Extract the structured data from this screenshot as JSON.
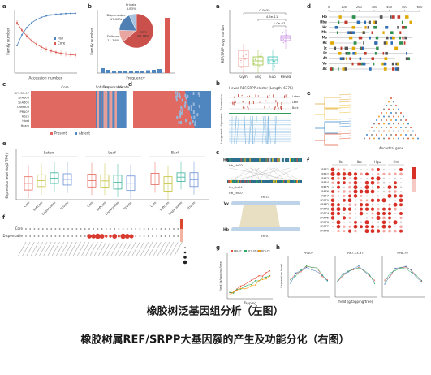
{
  "captions": {
    "left": "橡胶树泛基因组分析（左图）",
    "right": "橡胶树属REF/SRPP大基因簇的产生及功能分化（右图）"
  },
  "left": {
    "a": {
      "letter": "a",
      "ylabel": "Family number",
      "xlabel": "Accession number",
      "legend": [
        "Pan",
        "Core"
      ]
    },
    "b": {
      "letter": "b",
      "ylabel": "Family number",
      "xlabel": "Frequency",
      "pie": {
        "type": "pie",
        "categories": [
          "Core",
          "Softcore",
          "Dispensable",
          "Private"
        ],
        "values": [
          64.26,
          11.34,
          17.58,
          6.83
        ],
        "value_labels": [
          "64.26%",
          "11.34%",
          "17.58%",
          "6.83%"
        ],
        "colors": [
          "#c9504b",
          "#e9a59f",
          "#4f7fb3",
          "#a8c4e0"
        ]
      }
    },
    "c": {
      "letter": "c",
      "columns": [
        "Core",
        "Softcore",
        "Dispensable",
        "Private"
      ],
      "rows": [
        "RY7-33-97",
        "SJ-A600",
        "SJ-A602",
        "CRM600",
        "PR107",
        "Hbch",
        "Hbet",
        "Hcam"
      ],
      "legend": [
        "Present",
        "Absent"
      ]
    },
    "d": {
      "letter": "d"
    },
    "e": {
      "letter": "e",
      "groups": [
        "Latex",
        "Leaf",
        "Bark"
      ],
      "ylabel": "Expression level (log2(TPM))",
      "categories": [
        "Core",
        "Softcore",
        "Dispensable",
        "Private"
      ]
    },
    "f": {
      "letter": "f",
      "rows": [
        "Core",
        "Dispensable"
      ]
    }
  },
  "right": {
    "a": {
      "letter": "a",
      "ylabel": "REF/SRPP copy number",
      "categories": [
        "Gym",
        "Ang",
        "Eup",
        "Hevea"
      ],
      "pvalues": [
        "0.0035",
        "4.5e-11",
        "1.0e-07"
      ]
    },
    "b": {
      "letter": "b",
      "title": "Hevea REF/SRPP cluster (Length: 637K)",
      "side_labels": [
        "Expression",
        "Long-read alignment"
      ],
      "tracks": [
        "Latex",
        "Leaf",
        "Bark"
      ]
    },
    "c": {
      "letter": "c",
      "regions": [
        "Hb_chr02",
        "Vv_chr14",
        "Hb_chr07"
      ],
      "species": [
        "Hb",
        "Vv",
        "Hb"
      ],
      "chromosomes": [
        "chr14",
        "chr07"
      ]
    },
    "d": {
      "letter": "d",
      "rows": [
        "Hb",
        "Hbe",
        "Hc",
        "Me",
        "Ms",
        "Rc",
        "Jc",
        "Pt",
        "At",
        "Vv",
        "Ac"
      ],
      "xlim": [
        0,
        600
      ],
      "xticks": [
        0,
        100,
        200,
        300,
        400,
        500,
        600
      ]
    },
    "e": {
      "letter": "e",
      "label": "Ancestral gene"
    },
    "f": {
      "letter": "f",
      "columns": [
        "Hb",
        "Hbe",
        "Hgu",
        "Hm"
      ],
      "rows": [
        "REF1",
        "REF2",
        "REF3",
        "REF4",
        "REF5",
        "REF6",
        "REF7",
        "SRPP1",
        "SRPP2",
        "SRPP3",
        "SRPP4",
        "SRPP5",
        "SRPP6",
        "SRPP7",
        "SRPP8"
      ]
    },
    "g": {
      "letter": "g",
      "ylabel": "Yield (g/tapping/tree)",
      "xlabel": "Tapping",
      "legend": [
        "PR107",
        "RY7-33-97",
        "RY8-79"
      ]
    },
    "h": {
      "letter": "h",
      "titles": [
        "PR107",
        "RY7-33-97",
        "RY8-79"
      ],
      "ylabel": "Expression level",
      "xlabel": "Yield (g/tapping/tree)"
    }
  }
}
